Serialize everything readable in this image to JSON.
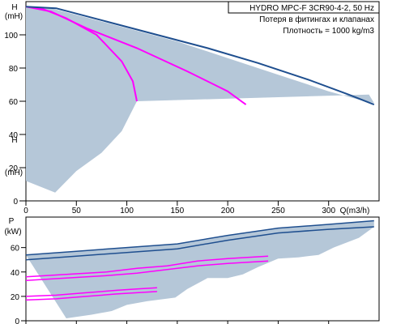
{
  "chart_data": [
    {
      "type": "area",
      "title_lines": [
        "HYDRO MPC-F 3CR90-4-2, 50 Hz",
        "Потеря в фитингах и клапанах",
        "Плотность = 1000 kg/m3"
      ],
      "ylabel_top": "H",
      "ylabel_unit": "(mH)",
      "xlabel": "Q(m3/h)",
      "xlim": [
        0,
        350
      ],
      "ylim": [
        0,
        120
      ],
      "xticks": [
        0,
        50,
        100,
        150,
        200,
        250,
        300
      ],
      "yticks": [
        0,
        20,
        40,
        60,
        80,
        100
      ],
      "envelope": {
        "upper": [
          [
            0,
            117
          ],
          [
            25,
            116
          ],
          [
            50,
            112
          ],
          [
            100,
            104
          ],
          [
            150,
            96
          ],
          [
            200,
            86
          ],
          [
            250,
            76
          ],
          [
            300,
            66
          ],
          [
            330,
            61
          ],
          [
            345,
            59
          ]
        ],
        "lower": [
          [
            345,
            59
          ],
          [
            340,
            64
          ],
          [
            110,
            60
          ],
          [
            95,
            42
          ],
          [
            75,
            29
          ],
          [
            50,
            18
          ],
          [
            29,
            5
          ],
          [
            0,
            12
          ]
        ]
      },
      "series": [
        {
          "points": [
            [
              0,
              117
            ],
            [
              15,
              116
            ],
            [
              40,
              110
            ],
            [
              70,
              100
            ],
            [
              95,
              84
            ],
            [
              106,
              72
            ],
            [
              110,
              60
            ]
          ]
        },
        {
          "points": [
            [
              0,
              117
            ],
            [
              25,
              114
            ],
            [
              60,
              104
            ],
            [
              110,
              92
            ],
            [
              160,
              78
            ],
            [
              200,
              66
            ],
            [
              218,
              58
            ]
          ]
        },
        {
          "points": [
            [
              0,
              117
            ],
            [
              30,
              116
            ],
            [
              80,
              108
            ],
            [
              130,
              100
            ],
            [
              180,
              92
            ],
            [
              230,
              83
            ],
            [
              280,
              73
            ],
            [
              320,
              64
            ],
            [
              345,
              58
            ]
          ]
        }
      ],
      "colors": {
        "area": "#b5c7d8",
        "curve": "#ff00ff",
        "border": "#1f4f8f"
      }
    },
    {
      "type": "area",
      "ylabel_top": "P",
      "ylabel_unit": "(kW)",
      "xlim": [
        0,
        350
      ],
      "ylim": [
        0,
        85
      ],
      "yticks": [
        0,
        20,
        40,
        60
      ],
      "envelope": {
        "upper": [
          [
            0,
            54
          ],
          [
            50,
            57
          ],
          [
            100,
            60
          ],
          [
            150,
            63
          ],
          [
            200,
            70
          ],
          [
            250,
            76
          ],
          [
            300,
            79
          ],
          [
            345,
            82
          ]
        ],
        "lower": [
          [
            345,
            77
          ],
          [
            330,
            68
          ],
          [
            305,
            60
          ],
          [
            290,
            54
          ],
          [
            270,
            52
          ],
          [
            250,
            51
          ],
          [
            230,
            44
          ],
          [
            215,
            38
          ],
          [
            200,
            35
          ],
          [
            180,
            35
          ],
          [
            160,
            26
          ],
          [
            148,
            19
          ],
          [
            120,
            16
          ],
          [
            100,
            13
          ],
          [
            85,
            8
          ],
          [
            65,
            5
          ],
          [
            40,
            2
          ]
        ]
      },
      "series": [
        {
          "name_hidden": "",
          "points": [
            [
              0,
              54
            ],
            [
              50,
              57
            ],
            [
              100,
              60
            ],
            [
              150,
              63
            ],
            [
              200,
              70
            ],
            [
              250,
              76
            ],
            [
              300,
              79
            ],
            [
              345,
              82
            ]
          ]
        },
        {
          "name_hidden": "",
          "points": [
            [
              0,
              50
            ],
            [
              50,
              53
            ],
            [
              100,
              56
            ],
            [
              150,
              59
            ],
            [
              200,
              66
            ],
            [
              250,
              72
            ],
            [
              300,
              75
            ],
            [
              345,
              77
            ]
          ]
        },
        {
          "name_hidden": "",
          "points": [
            [
              0,
              36
            ],
            [
              40,
              38
            ],
            [
              80,
              40
            ],
            [
              110,
              43
            ],
            [
              140,
              45
            ],
            [
              170,
              49
            ],
            [
              200,
              51
            ],
            [
              220,
              52
            ],
            [
              240,
              53
            ]
          ]
        },
        {
          "name_hidden": "",
          "points": [
            [
              0,
              33
            ],
            [
              40,
              35
            ],
            [
              80,
              37
            ],
            [
              110,
              39
            ],
            [
              140,
              42
            ],
            [
              170,
              45
            ],
            [
              200,
              47
            ],
            [
              220,
              48
            ],
            [
              240,
              49
            ]
          ]
        },
        {
          "name_hidden": "",
          "points": [
            [
              0,
              20
            ],
            [
              30,
              21
            ],
            [
              60,
              23
            ],
            [
              90,
              25
            ],
            [
              110,
              26
            ],
            [
              130,
              27
            ]
          ]
        },
        {
          "name_hidden": "",
          "points": [
            [
              0,
              17
            ],
            [
              30,
              18
            ],
            [
              60,
              20
            ],
            [
              90,
              22
            ],
            [
              110,
              23
            ],
            [
              130,
              24
            ]
          ]
        }
      ],
      "colors": {
        "area": "#b5c7d8",
        "curve": "#ff00ff",
        "border": "#1f4f8f"
      }
    }
  ]
}
